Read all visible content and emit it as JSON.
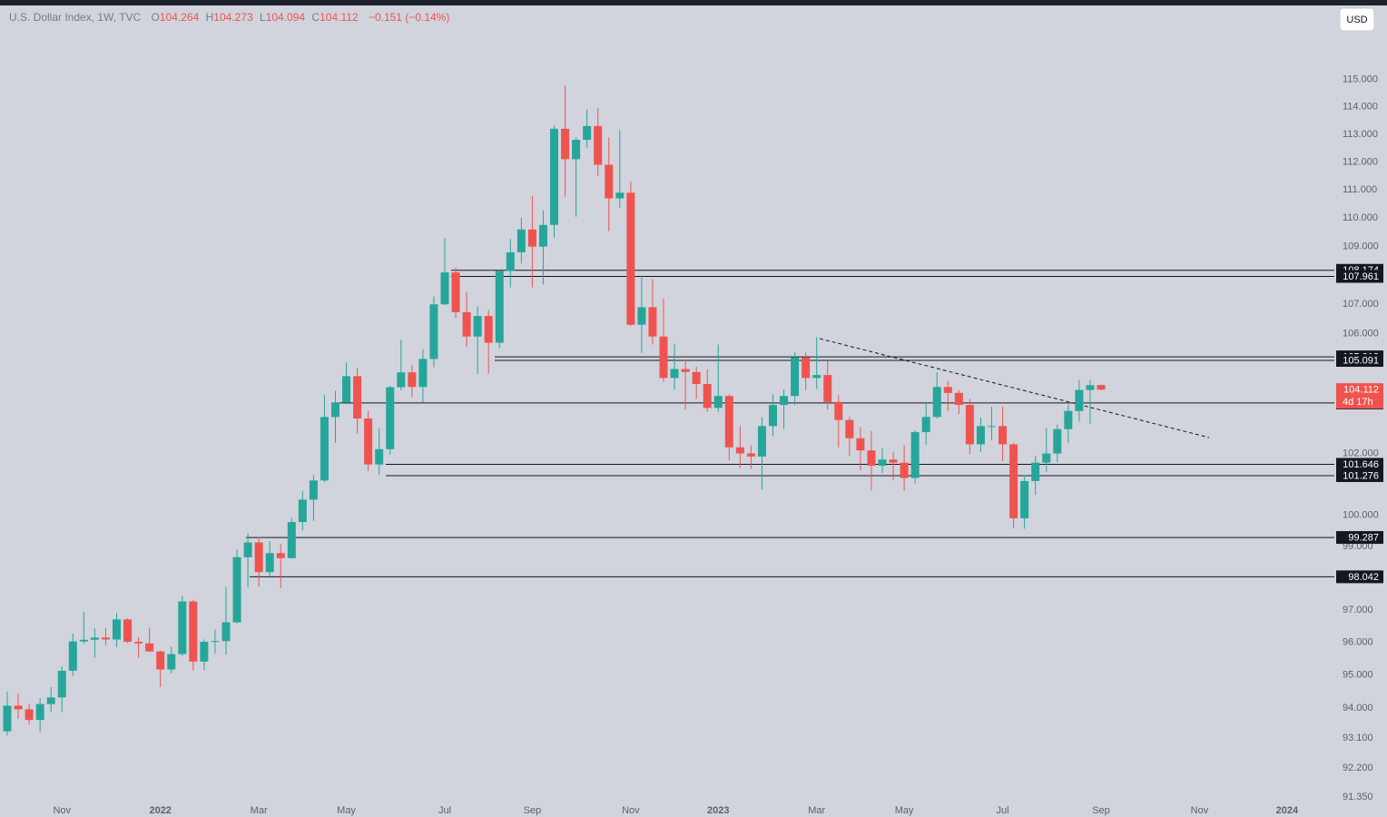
{
  "header": {
    "symbol": "U.S. Dollar Index, 1W, TVC",
    "ohlc_letters": [
      "O",
      "H",
      "L",
      "C"
    ],
    "change": "−0.151 (−0.14%)",
    "currency": "USD",
    "countdown": "4d 17h"
  },
  "chart_data": {
    "type": "candlestick",
    "log_scale": true,
    "grid": false,
    "up_color": "#26a69a",
    "down_color": "#ef5350",
    "level_color": "#131722",
    "categories": [
      null,
      null,
      null,
      null,
      null,
      "Nov",
      null,
      null,
      null,
      null,
      null,
      null,
      null,
      null,
      "2022",
      null,
      null,
      null,
      null,
      null,
      null,
      null,
      null,
      "Mar",
      null,
      null,
      null,
      null,
      null,
      null,
      null,
      "May",
      null,
      null,
      null,
      null,
      null,
      null,
      null,
      null,
      "Jul",
      null,
      null,
      null,
      null,
      null,
      null,
      null,
      "Sep",
      null,
      null,
      null,
      null,
      null,
      null,
      null,
      null,
      "Nov",
      null,
      null,
      null,
      null,
      null,
      null,
      null,
      "2023",
      null,
      null,
      null,
      null,
      null,
      null,
      null,
      null,
      "Mar",
      null,
      null,
      null,
      null,
      null,
      null,
      null,
      "May",
      null,
      null,
      null,
      null,
      null,
      null,
      null,
      null,
      "Jul",
      null,
      null,
      null,
      null,
      null,
      null,
      null,
      null,
      "Sep",
      null,
      null,
      null,
      null,
      null,
      null,
      null,
      null,
      "Nov",
      null,
      null,
      null,
      null,
      null,
      null,
      null,
      "2024",
      null,
      null
    ],
    "open": [
      93.3,
      94.07,
      93.96,
      93.64,
      94.12,
      94.32,
      95.13,
      96.03,
      96.08,
      96.15,
      96.09,
      96.71,
      96.02,
      95.97,
      95.72,
      95.17,
      95.64,
      97.27,
      95.41,
      96.02,
      96.04,
      96.62,
      98.66,
      99.13,
      98.19,
      98.79,
      98.63,
      99.78,
      100.5,
      101.12,
      103.2,
      103.68,
      104.56,
      103.15,
      101.64,
      102.14,
      104.19,
      104.69,
      104.2,
      105.14,
      107.0,
      108.1,
      106.73,
      105.9,
      106.6,
      105.69,
      108.15,
      108.8,
      109.6,
      109.0,
      109.76,
      113.2,
      112.1,
      112.8,
      113.3,
      111.9,
      110.7,
      110.9,
      106.3,
      106.9,
      105.9,
      104.5,
      104.8,
      104.7,
      104.3,
      103.5,
      103.9,
      102.2,
      102.0,
      101.9,
      102.9,
      103.6,
      103.9,
      105.2,
      104.5,
      104.6,
      103.7,
      103.1,
      102.5,
      102.1,
      101.6,
      101.8,
      101.7,
      101.2,
      102.7,
      103.2,
      104.2,
      104.0,
      103.6,
      102.3,
      102.9,
      102.9,
      102.3,
      99.9,
      101.1,
      101.7,
      102.0,
      102.8,
      103.4,
      104.1,
      104.264,
      null,
      null,
      null,
      null,
      null,
      null,
      null,
      null,
      null,
      null,
      null,
      null,
      null,
      null,
      null,
      null,
      null,
      null,
      null
    ],
    "high": [
      94.5,
      94.45,
      94.13,
      94.3,
      94.63,
      95.27,
      96.27,
      96.94,
      96.43,
      96.45,
      96.91,
      96.74,
      96.16,
      96.46,
      95.76,
      95.87,
      97.44,
      97.32,
      96.09,
      96.39,
      97.73,
      98.91,
      99.42,
      99.3,
      99.17,
      99.08,
      99.91,
      100.77,
      101.3,
      103.93,
      104.07,
      105.01,
      104.85,
      103.4,
      102.82,
      104.24,
      105.79,
      104.94,
      105.48,
      107.27,
      109.29,
      108.27,
      107.43,
      106.93,
      106.81,
      108.18,
      109.27,
      110.02,
      110.79,
      110.27,
      113.33,
      114.78,
      112.88,
      113.92,
      113.95,
      112.88,
      113.15,
      111.3,
      107.99,
      107.86,
      107.2,
      105.66,
      105.11,
      104.88,
      104.79,
      105.63,
      103.95,
      102.9,
      102.26,
      103.19,
      103.96,
      104.12,
      105.36,
      105.36,
      105.88,
      105.07,
      103.93,
      103.2,
      102.86,
      102.73,
      102.17,
      102.04,
      102.28,
      102.76,
      103.64,
      104.7,
      104.4,
      104.1,
      103.8,
      103.18,
      103.54,
      103.55,
      102.35,
      101.29,
      101.92,
      102.84,
      102.95,
      103.6,
      104.44,
      104.44,
      104.273,
      null,
      null,
      null,
      null,
      null,
      null,
      null,
      null,
      null,
      null,
      null,
      null,
      null,
      null,
      null,
      null,
      null,
      null,
      null
    ],
    "low": [
      93.17,
      93.67,
      93.5,
      93.28,
      93.87,
      93.87,
      94.97,
      95.95,
      95.52,
      95.91,
      95.85,
      95.98,
      95.53,
      95.71,
      94.63,
      95.05,
      95.58,
      95.14,
      95.14,
      95.65,
      95.62,
      96.58,
      97.71,
      97.72,
      98.06,
      97.69,
      98.61,
      99.51,
      99.82,
      101.07,
      102.35,
      103.62,
      102.65,
      101.43,
      101.3,
      101.97,
      104.09,
      103.86,
      103.69,
      104.86,
      106.97,
      106.53,
      105.54,
      104.63,
      104.64,
      105.5,
      107.58,
      108.41,
      107.58,
      107.68,
      109.32,
      110.76,
      110.05,
      112.52,
      111.5,
      109.54,
      110.36,
      106.27,
      105.34,
      105.63,
      104.37,
      104.11,
      103.45,
      103.8,
      103.38,
      103.37,
      101.77,
      101.53,
      101.5,
      100.82,
      102.57,
      102.8,
      103.61,
      104.09,
      104.14,
      103.44,
      102.2,
      101.91,
      101.45,
      100.79,
      101.36,
      101.13,
      100.78,
      101.02,
      102.29,
      103.15,
      103.39,
      103.3,
      101.97,
      102.05,
      102.44,
      101.76,
      99.58,
      99.57,
      100.66,
      101.4,
      101.72,
      102.34,
      103.04,
      102.97,
      104.094,
      null,
      null,
      null,
      null,
      null,
      null,
      null,
      null,
      null,
      null,
      null,
      null,
      null,
      null,
      null,
      null,
      null,
      null,
      null
    ],
    "close": [
      94.07,
      93.96,
      93.64,
      94.12,
      94.32,
      95.13,
      96.03,
      96.08,
      96.15,
      96.09,
      96.71,
      96.02,
      95.97,
      95.72,
      95.17,
      95.64,
      97.27,
      95.41,
      96.02,
      96.04,
      96.62,
      98.66,
      99.13,
      98.19,
      98.79,
      98.63,
      99.78,
      100.5,
      101.12,
      103.2,
      103.68,
      104.56,
      103.15,
      101.64,
      102.14,
      104.19,
      104.69,
      104.2,
      105.14,
      107.0,
      108.1,
      106.73,
      105.9,
      106.6,
      105.69,
      108.15,
      108.8,
      109.6,
      109.0,
      109.76,
      113.2,
      112.1,
      112.8,
      113.3,
      111.9,
      110.7,
      110.9,
      106.3,
      106.9,
      105.9,
      104.5,
      104.8,
      104.7,
      104.3,
      103.5,
      103.9,
      102.2,
      102.0,
      101.9,
      102.9,
      103.6,
      103.9,
      105.2,
      104.5,
      104.6,
      103.7,
      103.1,
      102.5,
      102.1,
      101.6,
      101.8,
      101.7,
      101.2,
      102.7,
      103.2,
      104.2,
      104.0,
      103.6,
      102.3,
      102.9,
      102.9,
      102.3,
      99.9,
      101.1,
      101.7,
      102.0,
      102.8,
      103.4,
      104.1,
      104.26,
      104.112,
      null,
      null,
      null,
      null,
      null,
      null,
      null,
      null,
      null,
      null,
      null,
      null,
      null,
      null,
      null,
      null,
      null,
      null,
      null
    ],
    "ylim": [
      91.3,
      117.7
    ],
    "yticks": [
      {
        "value": 115,
        "label": "115.000"
      },
      {
        "value": 114,
        "label": "114.000"
      },
      {
        "value": 113,
        "label": "113.000"
      },
      {
        "value": 112,
        "label": "112.000"
      },
      {
        "value": 111,
        "label": "111.000"
      },
      {
        "value": 110,
        "label": "110.000"
      },
      {
        "value": 109,
        "label": "109.000"
      },
      {
        "value": 107,
        "label": "107.000"
      },
      {
        "value": 106,
        "label": "106.000"
      },
      {
        "value": 102,
        "label": "102.000"
      },
      {
        "value": 100,
        "label": "100.000"
      },
      {
        "value": 99,
        "label": "99.000"
      },
      {
        "value": 97,
        "label": "97.000"
      },
      {
        "value": 96,
        "label": "96.000"
      },
      {
        "value": 95,
        "label": "95.000"
      },
      {
        "value": 94,
        "label": "94.000"
      },
      {
        "value": 93.1,
        "label": "93.100"
      },
      {
        "value": 92.2,
        "label": "92.200"
      },
      {
        "value": 91.35,
        "label": "91.350"
      }
    ],
    "levels": [
      108.174,
      107.961,
      105.212,
      105.091,
      103.666,
      101.646,
      101.276,
      99.287,
      98.042
    ]
  }
}
